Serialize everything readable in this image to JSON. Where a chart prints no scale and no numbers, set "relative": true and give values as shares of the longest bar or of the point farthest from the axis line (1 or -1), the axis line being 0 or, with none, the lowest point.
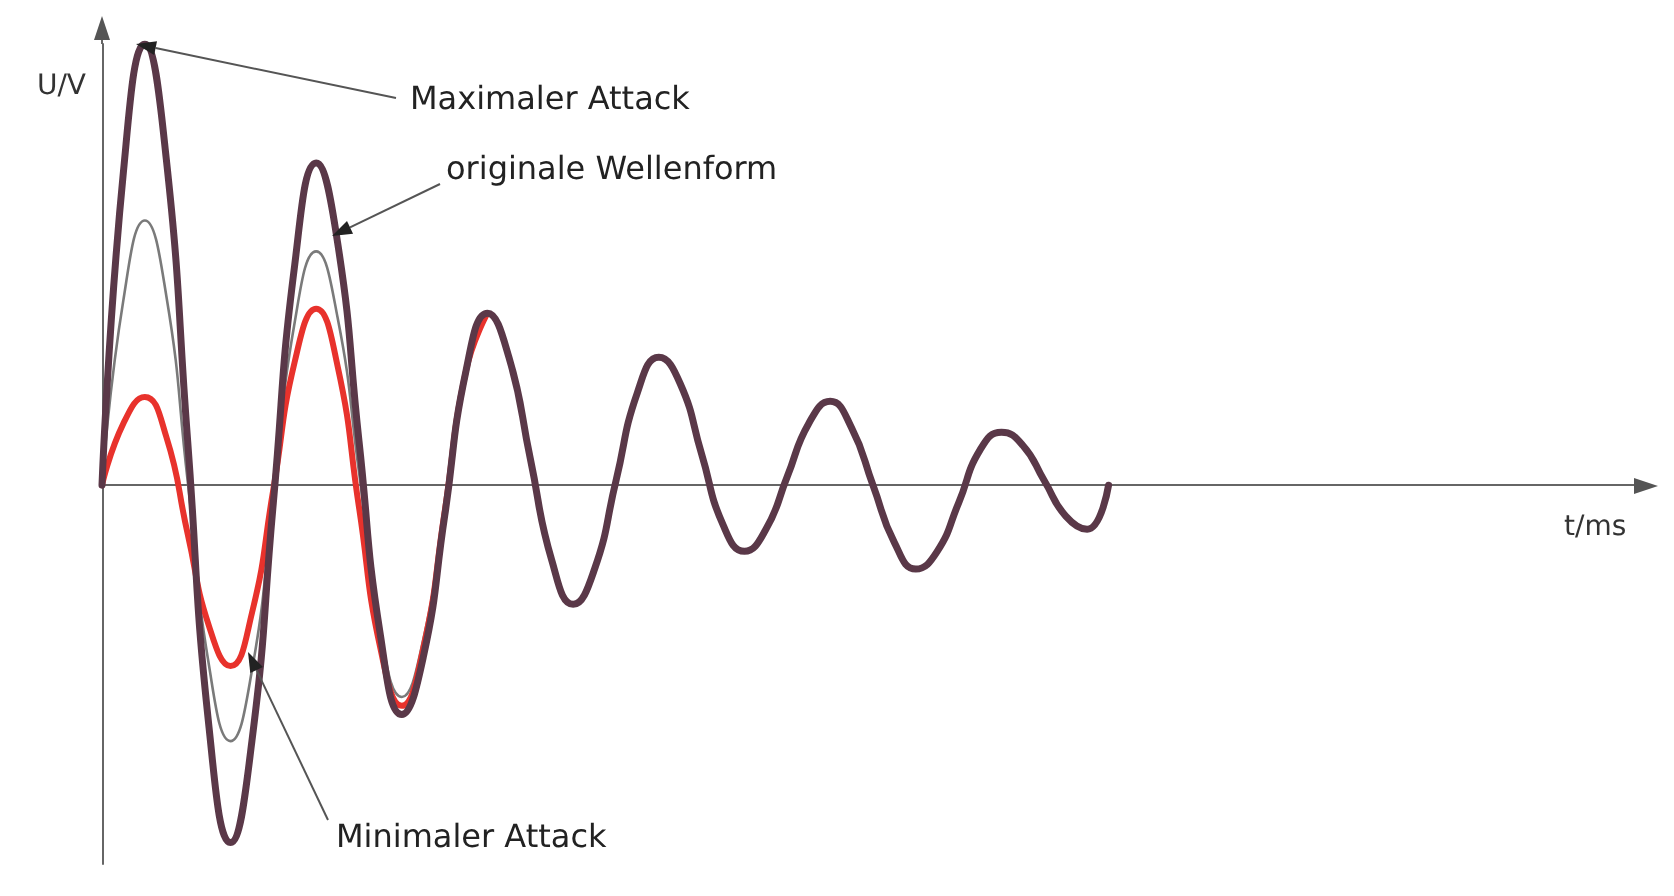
{
  "chart_data": {
    "type": "line",
    "relative": true,
    "xlabel": "t/ms",
    "ylabel": "U/V",
    "marker": "none",
    "line_style": "solid",
    "categories": [
      null,
      null,
      null,
      null,
      null,
      null,
      null,
      null,
      null,
      null,
      null,
      null,
      null,
      null,
      null,
      null,
      null,
      null,
      null,
      null,
      null,
      null,
      null,
      null,
      null,
      null,
      null,
      null,
      null,
      null,
      null,
      null,
      null,
      null,
      null,
      null,
      null,
      null,
      null,
      null,
      null,
      null,
      null,
      null,
      null,
      null,
      null,
      null,
      null,
      null,
      null,
      null,
      null,
      null,
      null,
      null,
      null,
      null,
      null,
      null,
      null,
      null,
      null,
      null,
      null,
      null,
      null,
      null,
      null,
      null,
      null,
      null,
      null
    ],
    "series": [
      {
        "color": "#7a7a7a",
        "values": [
          0,
          0.42,
          0.6,
          0.43,
          0.01,
          -0.41,
          -0.58,
          -0.42,
          -0.03,
          0.37,
          0.53,
          0.38,
          0.03,
          -0.33,
          -0.48,
          -0.35,
          -0.05,
          0.26,
          0.39,
          null,
          null,
          null,
          null,
          null,
          null,
          null,
          null,
          null,
          null,
          null,
          null,
          null,
          null,
          null,
          null,
          null,
          null,
          null,
          null,
          null,
          null,
          null,
          null,
          null,
          null,
          null,
          null,
          null,
          null,
          null,
          null,
          null,
          null,
          null,
          null,
          null,
          null,
          null,
          null,
          null,
          null,
          null,
          null,
          null,
          null,
          null,
          null,
          null,
          null,
          null,
          null,
          null,
          null
        ]
      },
      {
        "color": "#e8322c",
        "values": [
          0,
          0.14,
          0.2,
          0.11,
          -0.11,
          -0.32,
          -0.41,
          -0.29,
          -0.01,
          0.28,
          0.4,
          0.27,
          -0.05,
          -0.37,
          -0.5,
          -0.37,
          -0.06,
          0.26,
          0.39,
          null,
          null,
          null,
          null,
          null,
          null,
          null,
          null,
          null,
          null,
          null,
          null,
          null,
          null,
          null,
          null,
          null,
          null,
          null,
          null,
          null,
          null,
          null,
          null,
          null,
          null,
          null,
          null,
          null,
          null,
          null,
          null,
          null,
          null,
          null,
          null,
          null,
          null,
          null,
          null,
          null,
          null,
          null,
          null,
          null,
          null,
          null,
          null,
          null,
          null,
          null,
          null,
          null,
          null
        ]
      },
      {
        "color": "#5a3848",
        "values": [
          0,
          0.71,
          1,
          0.74,
          0.1,
          -0.55,
          -0.81,
          -0.58,
          -0.04,
          0.5,
          0.73,
          0.55,
          0.1,
          -0.34,
          -0.52,
          -0.39,
          -0.07,
          0.26,
          0.39,
          0.29,
          0.06,
          -0.17,
          -0.27,
          -0.19,
          0.01,
          0.21,
          0.29,
          0.23,
          0.07,
          -0.09,
          -0.15,
          -0.1,
          0.02,
          0.14,
          0.19,
          0.13,
          0,
          -0.13,
          -0.19,
          -0.15,
          -0.04,
          0.08,
          0.12,
          0.09,
          0.01,
          -0.07,
          -0.1,
          0,
          null,
          null,
          null,
          null,
          null,
          null,
          null,
          null,
          null,
          null,
          null,
          null,
          null,
          null,
          null,
          null,
          null,
          null,
          null,
          null,
          null,
          null,
          null,
          null,
          null
        ]
      }
    ],
    "annotations": [
      "Maximaler Attack",
      "originale Wellenform",
      "Minimaler Attack"
    ]
  }
}
